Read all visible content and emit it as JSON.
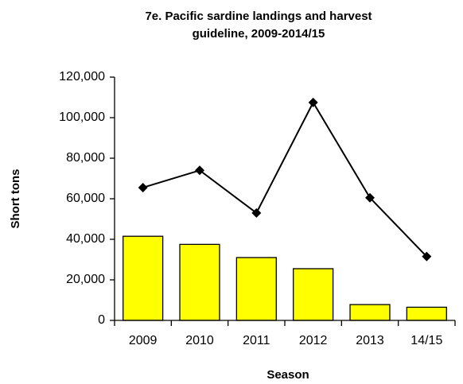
{
  "chart_data": {
    "type": "bar",
    "title": "7e. Pacific sardine landings and harvest guideline, 2009-2014/15",
    "x_label": "Season",
    "y_label": "Short tons",
    "categories": [
      "2009",
      "2010",
      "2011",
      "2012",
      "2013",
      "14/15"
    ],
    "series": [
      {
        "type": "bar",
        "color": "#ffff00",
        "values": [
          41500,
          37500,
          31000,
          25500,
          7800,
          6500
        ]
      },
      {
        "type": "line",
        "color": "#000000",
        "values": [
          65500,
          74000,
          53000,
          107500,
          60500,
          31500
        ]
      }
    ],
    "ylim": [
      0,
      120000
    ],
    "yticks": [
      0,
      {
        "value": 20000,
        "label": "20,000"
      },
      {
        "value": 40000,
        "label": "40,000"
      },
      {
        "value": 60000,
        "label": "60,000"
      },
      {
        "value": 80000,
        "label": "80,000"
      },
      {
        "value": 100000,
        "label": "100,000"
      },
      {
        "value": 120000,
        "label": "120,000"
      }
    ]
  }
}
